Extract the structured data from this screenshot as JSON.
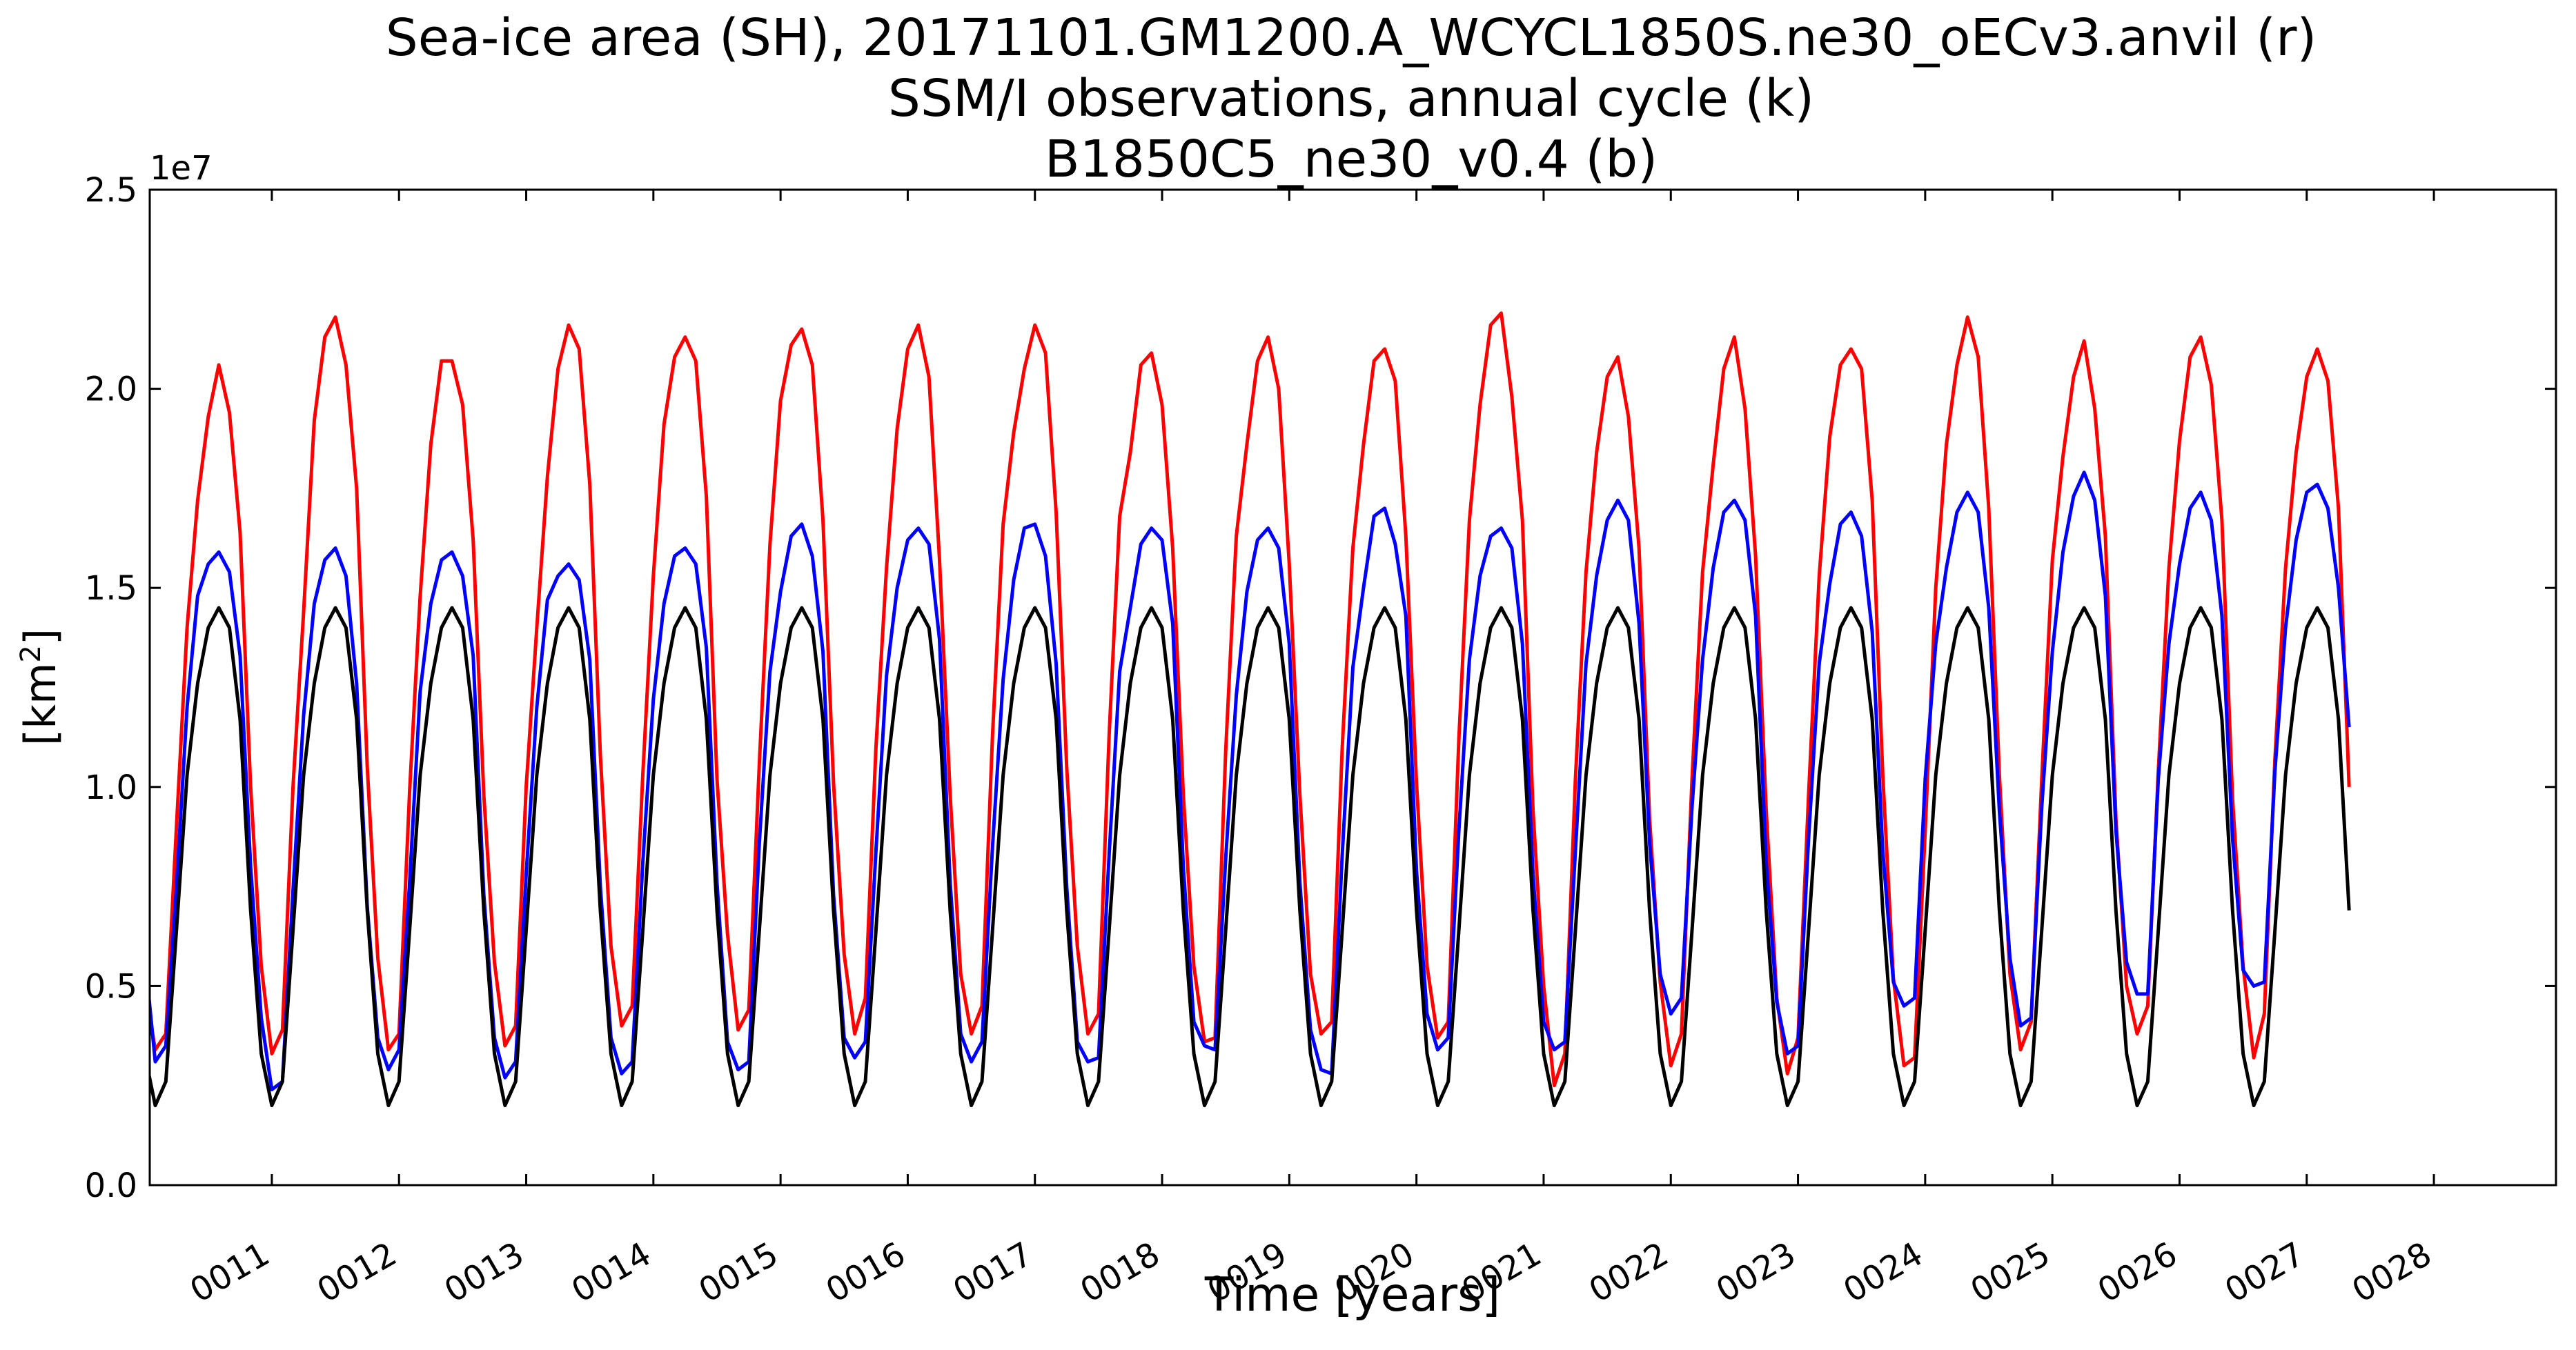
{
  "chart_data": {
    "type": "line",
    "title_lines": [
      "Sea-ice area (SH), 20171101.GM1200.A_WCYCL1850S.ne30_oECv3.anvil (r)",
      "SSM/I observations, annual cycle (k)",
      "B1850C5_ne30_v0.4 (b)"
    ],
    "xlabel": "Time [years]",
    "ylabel_base": "[km",
    "ylabel_sup": "2",
    "ylabel_end": "]",
    "y_offset_label": "1e7",
    "xlim": [
      10.04,
      28.96
    ],
    "ylim": [
      0,
      25000000
    ],
    "yticks": [
      0,
      5000000,
      10000000,
      15000000,
      20000000,
      25000000
    ],
    "ytick_labels": [
      "0.0",
      "0.5",
      "1.0",
      "1.5",
      "2.0",
      "2.5"
    ],
    "xticks": [
      11,
      12,
      13,
      14,
      15,
      16,
      17,
      18,
      19,
      20,
      21,
      22,
      23,
      24,
      25,
      26,
      27,
      28
    ],
    "xtick_labels": [
      "0011",
      "0012",
      "0013",
      "0014",
      "0015",
      "0016",
      "0017",
      "0018",
      "0019",
      "0020",
      "0021",
      "0022",
      "0023",
      "0024",
      "0025",
      "0026",
      "0027",
      "0028"
    ],
    "grid": false,
    "legend": "none",
    "start_year": 10,
    "months_per_year": 12,
    "series": [
      {
        "color": "#ff0000",
        "values": [
          5000000,
          3400000,
          3800000,
          9000000,
          14000000,
          17200000,
          19300000,
          20600000,
          19400000,
          16400000,
          10000000,
          5500000,
          3300000,
          3900000,
          10000000,
          14400000,
          19200000,
          21300000,
          21800000,
          20600000,
          17500000,
          10500000,
          5700000,
          3400000,
          3800000,
          9900000,
          14800000,
          18600000,
          20700000,
          20700000,
          19600000,
          16200000,
          9800000,
          5600000,
          3500000,
          4000000,
          10000000,
          14000000,
          17800000,
          20500000,
          21600000,
          21000000,
          17600000,
          10800000,
          6000000,
          4000000,
          4500000,
          10300000,
          15300000,
          19100000,
          20800000,
          21300000,
          20700000,
          17300000,
          10200000,
          6300000,
          3900000,
          4400000,
          10600000,
          16100000,
          19700000,
          21100000,
          21500000,
          20600000,
          16700000,
          10100000,
          5800000,
          3800000,
          4700000,
          11000000,
          15500000,
          19000000,
          21000000,
          21600000,
          20300000,
          15700000,
          9800000,
          5300000,
          3800000,
          4500000,
          11300000,
          16600000,
          18900000,
          20500000,
          21600000,
          20900000,
          16900000,
          10500000,
          6000000,
          3800000,
          4300000,
          11300000,
          16800000,
          18400000,
          20600000,
          20900000,
          19600000,
          16000000,
          9800000,
          5500000,
          3600000,
          3700000,
          10900000,
          16300000,
          18600000,
          20700000,
          21300000,
          20000000,
          15600000,
          9800000,
          5300000,
          3800000,
          4100000,
          11000000,
          16000000,
          18600000,
          20700000,
          21000000,
          20200000,
          16300000,
          10100000,
          5500000,
          3700000,
          4100000,
          11200000,
          16700000,
          19600000,
          21600000,
          21900000,
          19800000,
          16700000,
          9400000,
          5000000,
          2500000,
          3300000,
          10200000,
          15400000,
          18400000,
          20300000,
          20800000,
          19300000,
          16000000,
          9200000,
          5100000,
          3000000,
          3800000,
          10200000,
          15400000,
          18100000,
          20500000,
          21300000,
          19500000,
          15800000,
          9400000,
          4700000,
          2800000,
          3700000,
          9800000,
          15300000,
          18800000,
          20600000,
          21000000,
          20500000,
          17200000,
          10300000,
          5200000,
          3000000,
          3200000,
          8900000,
          15000000,
          18600000,
          20600000,
          21800000,
          20800000,
          17000000,
          10300000,
          5300000,
          3400000,
          4100000,
          10200000,
          15700000,
          18300000,
          20300000,
          21200000,
          19500000,
          16300000,
          9200000,
          5000000,
          3800000,
          4500000,
          10400000,
          15500000,
          18700000,
          20800000,
          21300000,
          20100000,
          16700000,
          9700000,
          5500000,
          3200000,
          4300000,
          10700000,
          15500000,
          18400000,
          20300000,
          21000000,
          20200000,
          17000000,
          10000000
        ]
      },
      {
        "color": "#0000ff",
        "values": [
          5800000,
          3100000,
          3500000,
          7500000,
          12000000,
          14800000,
          15600000,
          15900000,
          15400000,
          13300000,
          8000000,
          4200000,
          2400000,
          2600000,
          7400000,
          11800000,
          14600000,
          15700000,
          16000000,
          15300000,
          12600000,
          7000000,
          3700000,
          2900000,
          3400000,
          7600000,
          12400000,
          14600000,
          15700000,
          15900000,
          15300000,
          13300000,
          7300000,
          3700000,
          2700000,
          3100000,
          7800000,
          12000000,
          14700000,
          15300000,
          15600000,
          15200000,
          13200000,
          7500000,
          3700000,
          2800000,
          3100000,
          8100000,
          12200000,
          14600000,
          15800000,
          16000000,
          15600000,
          13500000,
          7600000,
          3600000,
          2900000,
          3100000,
          8600000,
          12900000,
          14900000,
          16300000,
          16600000,
          15800000,
          13400000,
          7300000,
          3700000,
          3200000,
          3600000,
          8400000,
          12800000,
          15000000,
          16200000,
          16500000,
          16100000,
          13700000,
          7600000,
          3800000,
          3100000,
          3600000,
          8500000,
          12700000,
          15200000,
          16500000,
          16600000,
          15800000,
          13100000,
          7500000,
          3600000,
          3100000,
          3200000,
          8300000,
          12900000,
          14500000,
          16100000,
          16500000,
          16200000,
          14100000,
          8000000,
          4100000,
          3500000,
          3400000,
          8200000,
          12300000,
          14900000,
          16200000,
          16500000,
          16000000,
          13600000,
          7600000,
          3900000,
          2900000,
          2800000,
          8300000,
          13000000,
          15000000,
          16800000,
          17000000,
          16100000,
          14300000,
          7900000,
          4300000,
          3400000,
          3700000,
          8900000,
          13200000,
          15300000,
          16300000,
          16500000,
          16000000,
          13600000,
          7800000,
          4100000,
          3400000,
          3600000,
          8400000,
          13100000,
          15300000,
          16700000,
          17200000,
          16700000,
          14100000,
          8600000,
          5300000,
          4300000,
          4700000,
          9500000,
          13200000,
          15500000,
          16900000,
          17200000,
          16700000,
          14300000,
          8100000,
          4600000,
          3300000,
          3500000,
          8700000,
          13100000,
          15100000,
          16600000,
          16900000,
          16300000,
          13900000,
          8400000,
          5100000,
          4500000,
          4700000,
          10200000,
          13600000,
          15500000,
          16900000,
          17400000,
          16900000,
          14500000,
          9400000,
          5700000,
          4000000,
          4200000,
          9500000,
          13400000,
          15900000,
          17300000,
          17900000,
          17200000,
          14800000,
          8900000,
          5600000,
          4800000,
          4800000,
          10200000,
          13600000,
          15600000,
          17000000,
          17400000,
          16700000,
          14300000,
          8700000,
          5400000,
          5000000,
          5100000,
          10400000,
          14000000,
          16200000,
          17400000,
          17600000,
          17000000,
          15000000,
          11500000
        ]
      },
      {
        "color": "#000000",
        "values": [
          3300000,
          2000000,
          2600000,
          6400000,
          10300000,
          12600000,
          14000000,
          14500000,
          14000000,
          11700000,
          6900000,
          3300000,
          2000000,
          2600000,
          6400000,
          10300000,
          12600000,
          14000000,
          14500000,
          14000000,
          11700000,
          6900000,
          3300000,
          2000000,
          2600000,
          6400000,
          10300000,
          12600000,
          14000000,
          14500000,
          14000000,
          11700000,
          6900000,
          3300000,
          2000000,
          2600000,
          6400000,
          10300000,
          12600000,
          14000000,
          14500000,
          14000000,
          11700000,
          6900000,
          3300000,
          2000000,
          2600000,
          6400000,
          10300000,
          12600000,
          14000000,
          14500000,
          14000000,
          11700000,
          6900000,
          3300000,
          2000000,
          2600000,
          6400000,
          10300000,
          12600000,
          14000000,
          14500000,
          14000000,
          11700000,
          6900000,
          3300000,
          2000000,
          2600000,
          6400000,
          10300000,
          12600000,
          14000000,
          14500000,
          14000000,
          11700000,
          6900000,
          3300000,
          2000000,
          2600000,
          6400000,
          10300000,
          12600000,
          14000000,
          14500000,
          14000000,
          11700000,
          6900000,
          3300000,
          2000000,
          2600000,
          6400000,
          10300000,
          12600000,
          14000000,
          14500000,
          14000000,
          11700000,
          6900000,
          3300000,
          2000000,
          2600000,
          6400000,
          10300000,
          12600000,
          14000000,
          14500000,
          14000000,
          11700000,
          6900000,
          3300000,
          2000000,
          2600000,
          6400000,
          10300000,
          12600000,
          14000000,
          14500000,
          14000000,
          11700000,
          6900000,
          3300000,
          2000000,
          2600000,
          6400000,
          10300000,
          12600000,
          14000000,
          14500000,
          14000000,
          11700000,
          6900000,
          3300000,
          2000000,
          2600000,
          6400000,
          10300000,
          12600000,
          14000000,
          14500000,
          14000000,
          11700000,
          6900000,
          3300000,
          2000000,
          2600000,
          6400000,
          10300000,
          12600000,
          14000000,
          14500000,
          14000000,
          11700000,
          6900000,
          3300000,
          2000000,
          2600000,
          6400000,
          10300000,
          12600000,
          14000000,
          14500000,
          14000000,
          11700000,
          6900000,
          3300000,
          2000000,
          2600000,
          6400000,
          10300000,
          12600000,
          14000000,
          14500000,
          14000000,
          11700000,
          6900000,
          3300000,
          2000000,
          2600000,
          6400000,
          10300000,
          12600000,
          14000000,
          14500000,
          14000000,
          11700000,
          6900000,
          3300000,
          2000000,
          2600000,
          6400000,
          10300000,
          12600000,
          14000000,
          14500000,
          14000000,
          11700000,
          6900000,
          3300000,
          2000000,
          2600000,
          6400000,
          10300000,
          12600000,
          14000000,
          14500000,
          14000000,
          11700000,
          6900000
        ]
      }
    ]
  }
}
